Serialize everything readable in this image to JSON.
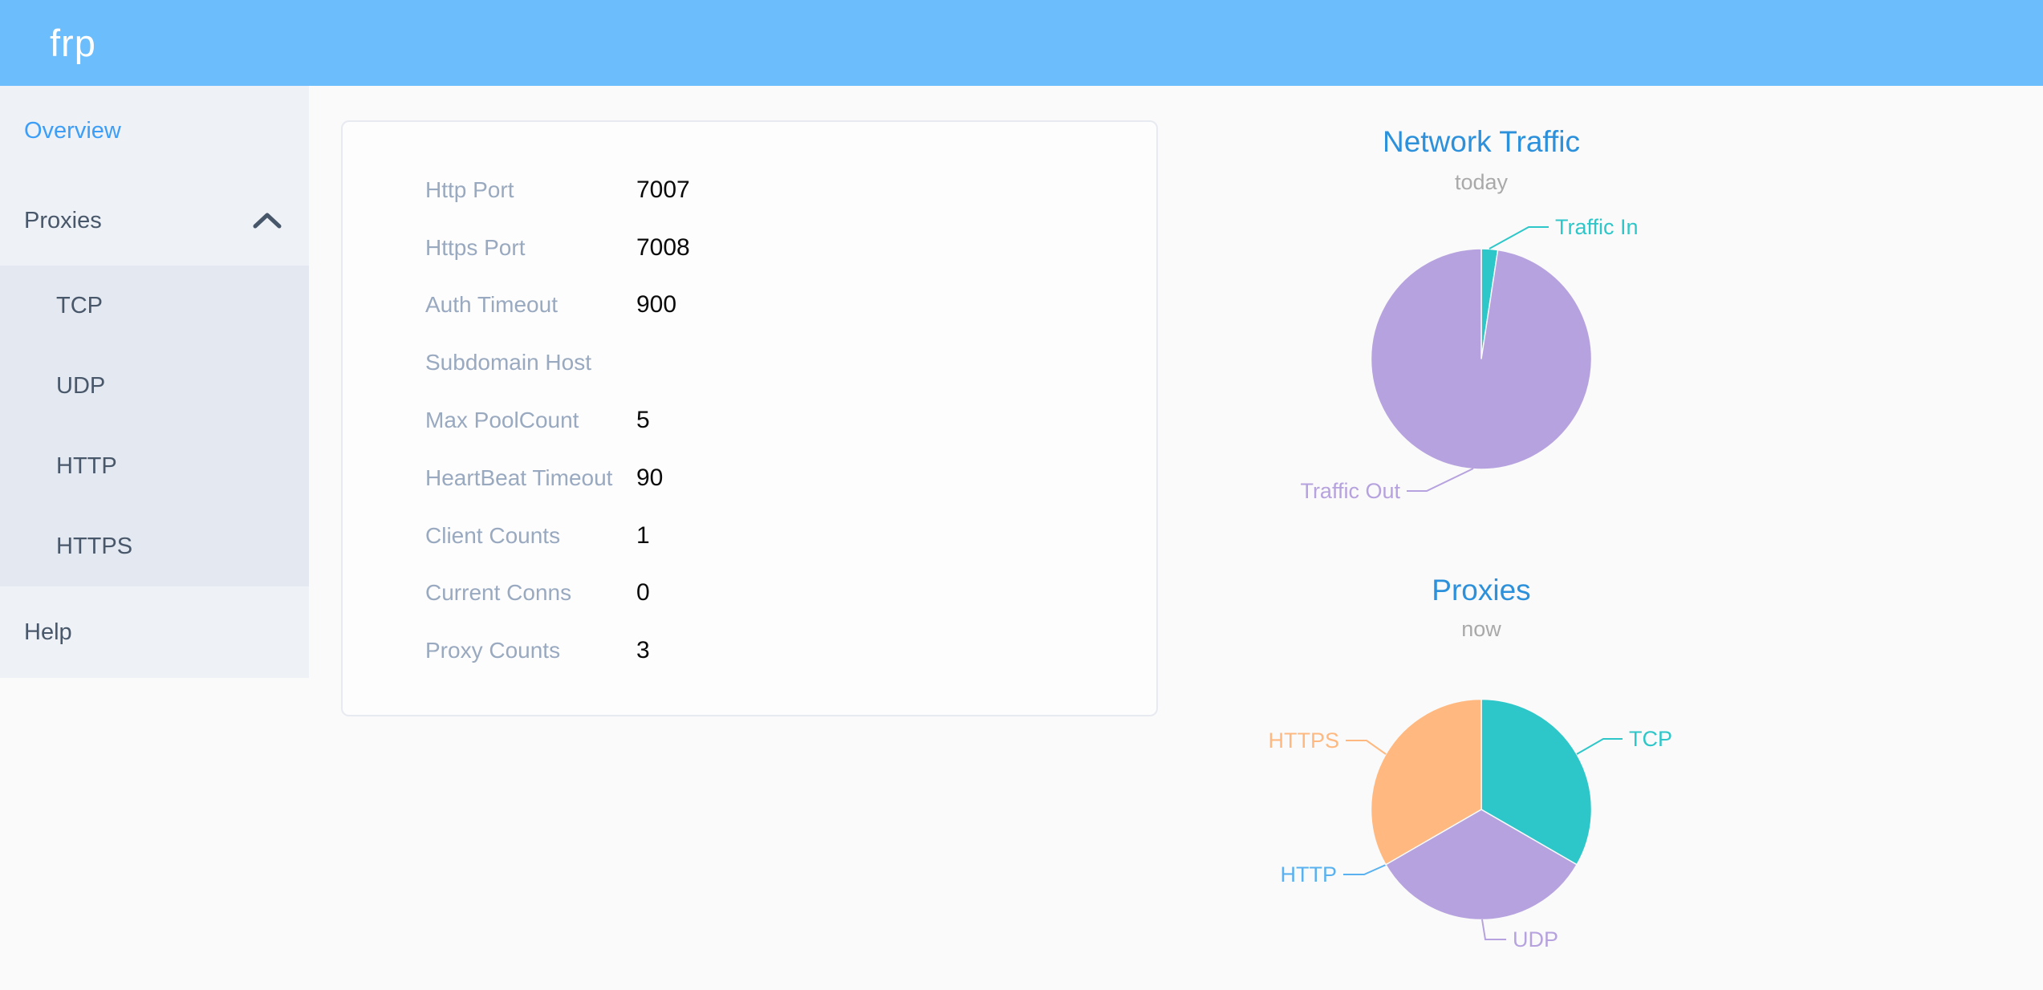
{
  "header": {
    "logo": "frp"
  },
  "sidebar": {
    "items": [
      {
        "label": "Overview",
        "active": true
      },
      {
        "label": "Proxies",
        "expanded": true,
        "children": [
          "TCP",
          "UDP",
          "HTTP",
          "HTTPS"
        ]
      },
      {
        "label": "Help"
      }
    ]
  },
  "overview": {
    "rows": [
      {
        "label": "Http Port",
        "value": "7007"
      },
      {
        "label": "Https Port",
        "value": "7008"
      },
      {
        "label": "Auth Timeout",
        "value": "900"
      },
      {
        "label": "Subdomain Host",
        "value": ""
      },
      {
        "label": "Max PoolCount",
        "value": "5"
      },
      {
        "label": "HeartBeat Timeout",
        "value": "90"
      },
      {
        "label": "Client Counts",
        "value": "1"
      },
      {
        "label": "Current Conns",
        "value": "0"
      },
      {
        "label": "Proxy Counts",
        "value": "3"
      }
    ]
  },
  "chart_data": [
    {
      "type": "pie",
      "title": "Network Traffic",
      "subtitle": "today",
      "legend_position": "callout-labels",
      "series": [
        {
          "name": "Traffic In",
          "value": 2.4,
          "color": "#2ec7c9"
        },
        {
          "name": "Traffic Out",
          "value": 97.6,
          "color": "#b6a2de"
        }
      ],
      "value_unit": "percent-of-daily-traffic-estimated"
    },
    {
      "type": "pie",
      "title": "Proxies",
      "subtitle": "now",
      "legend_position": "callout-labels",
      "series": [
        {
          "name": "TCP",
          "value": 1,
          "color": "#2ec7c9"
        },
        {
          "name": "UDP",
          "value": 1,
          "color": "#b6a2de"
        },
        {
          "name": "HTTP",
          "value": 0,
          "color": "#5ab1ef"
        },
        {
          "name": "HTTPS",
          "value": 1,
          "color": "#ffb980"
        }
      ],
      "value_unit": "proxy-count"
    }
  ],
  "colors": {
    "header_bg": "#6cbdfc",
    "sidebar_bg": "#eef1f6",
    "submenu_bg": "#e4e8f1",
    "menu_text": "#48576a",
    "active_item": "#3d9ef7",
    "chart_title": "#2c90db",
    "form_label": "#99a9bf"
  }
}
